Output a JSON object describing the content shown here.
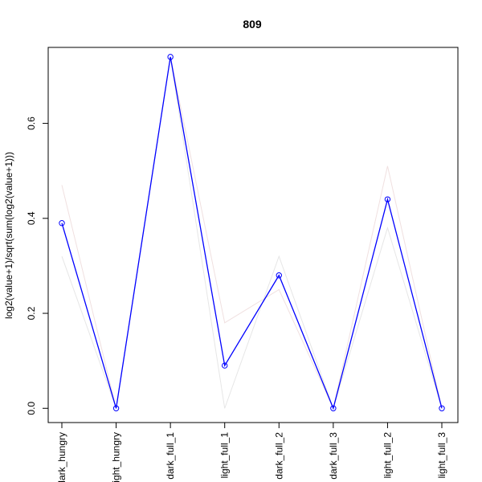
{
  "chart_data": {
    "type": "line",
    "title": "809",
    "xlabel": "",
    "ylabel": "log2(value+1)/sqrt(sum(log2(value+1)))",
    "categories": [
      "dark_hungry",
      "light_hungry",
      "dark_full_1",
      "light_full_1",
      "dark_full_2",
      "dark_full_3",
      "light_full_2",
      "light_full_3"
    ],
    "ylim": [
      -0.03,
      0.76
    ],
    "yticks": [
      0.0,
      0.2,
      0.4,
      0.6
    ],
    "ytick_labels": [
      "0.0",
      "0.2",
      "0.4",
      "0.6"
    ],
    "grid": false,
    "legend": "none",
    "series": [
      {
        "values": [
          0.47,
          0.0,
          0.74,
          0.18,
          0.25,
          0.0,
          0.51,
          0.0
        ],
        "color": "#f0e0e0",
        "markers": false
      },
      {
        "values": [
          0.32,
          0.0,
          0.74,
          0.0,
          0.32,
          0.0,
          0.38,
          0.0
        ],
        "color": "#e6e6e6",
        "markers": false
      },
      {
        "values": [
          0.39,
          0.0,
          0.74,
          0.09,
          0.28,
          0.0,
          0.44,
          0.0
        ],
        "color": "#0000ff",
        "markers": true
      }
    ]
  }
}
